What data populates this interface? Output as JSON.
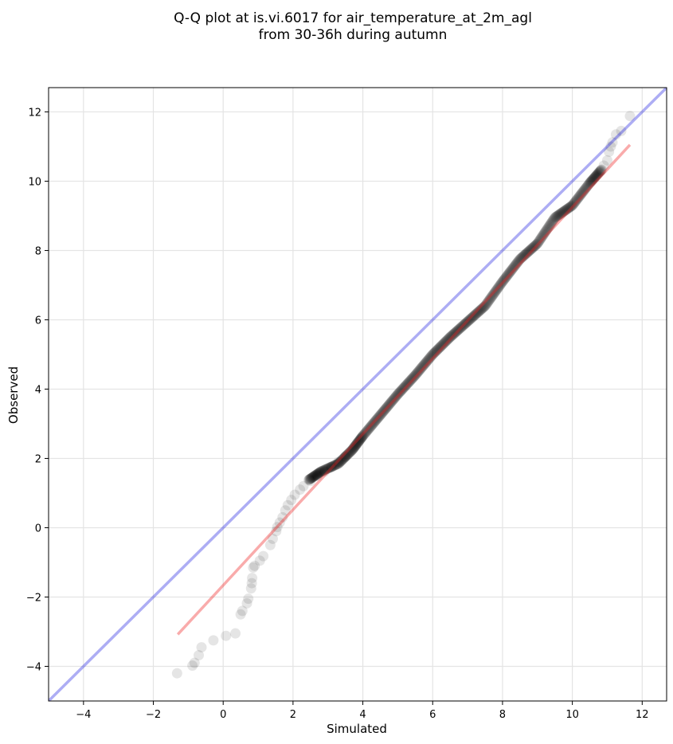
{
  "chart_data": {
    "type": "scatter",
    "title_lines": [
      "Q-Q plot at is.vi.6017 for air_temperature_at_2m_agl",
      "from 30-36h during autumn"
    ],
    "xlabel": "Simulated",
    "ylabel": "Observed",
    "xlim": [
      -5,
      12.7
    ],
    "ylim": [
      -5,
      12.7
    ],
    "xticks": [
      -4,
      -2,
      0,
      2,
      4,
      6,
      8,
      10,
      12
    ],
    "yticks": [
      -4,
      -2,
      0,
      2,
      4,
      6,
      8,
      10,
      12
    ],
    "xtick_labels": [
      "−4",
      "−2",
      "0",
      "2",
      "4",
      "6",
      "8",
      "10",
      "12"
    ],
    "ytick_labels": [
      "−4",
      "−2",
      "0",
      "2",
      "4",
      "6",
      "8",
      "10",
      "12"
    ],
    "grid": true,
    "identity_line": {
      "color": "#0000dd",
      "opacity": 0.32
    },
    "fit_line": {
      "color": "#ee2222",
      "opacity": 0.38,
      "x": [
        -1.3,
        11.65
      ],
      "y": [
        -3.08,
        11.05
      ]
    },
    "points_color": "#000000",
    "tail_points": [
      [
        -1.32,
        -4.2
      ],
      [
        -0.88,
        -3.98
      ],
      [
        -0.82,
        -3.9
      ],
      [
        -0.7,
        -3.68
      ],
      [
        -0.62,
        -3.45
      ],
      [
        -0.28,
        -3.25
      ],
      [
        0.08,
        -3.12
      ],
      [
        0.35,
        -3.05
      ],
      [
        0.5,
        -2.5
      ],
      [
        0.55,
        -2.4
      ],
      [
        0.68,
        -2.18
      ],
      [
        0.72,
        -2.05
      ],
      [
        0.8,
        -1.75
      ],
      [
        0.82,
        -1.6
      ],
      [
        0.83,
        -1.45
      ],
      [
        0.86,
        -1.15
      ],
      [
        0.9,
        -1.1
      ],
      [
        1.05,
        -0.95
      ],
      [
        1.15,
        -0.82
      ],
      [
        1.35,
        -0.5
      ],
      [
        1.42,
        -0.32
      ],
      [
        1.52,
        -0.1
      ],
      [
        1.55,
        0.02
      ],
      [
        1.62,
        0.15
      ],
      [
        1.7,
        0.3
      ],
      [
        1.78,
        0.5
      ],
      [
        1.85,
        0.65
      ],
      [
        1.95,
        0.8
      ],
      [
        2.05,
        0.95
      ],
      [
        2.2,
        1.1
      ],
      [
        2.3,
        1.2
      ],
      [
        2.5,
        1.35
      ],
      [
        2.7,
        1.5
      ],
      [
        2.9,
        1.62
      ],
      [
        3.1,
        1.75
      ],
      [
        3.3,
        1.9
      ],
      [
        3.5,
        2.05
      ]
    ],
    "body_curve": [
      [
        2.45,
        1.38
      ],
      [
        2.8,
        1.62
      ],
      [
        3.3,
        1.85
      ],
      [
        3.7,
        2.25
      ],
      [
        4.0,
        2.65
      ],
      [
        4.5,
        3.25
      ],
      [
        5.0,
        3.85
      ],
      [
        5.5,
        4.4
      ],
      [
        6.0,
        5.0
      ],
      [
        6.5,
        5.5
      ],
      [
        7.0,
        5.95
      ],
      [
        7.5,
        6.4
      ],
      [
        8.0,
        7.1
      ],
      [
        8.5,
        7.75
      ],
      [
        9.0,
        8.2
      ],
      [
        9.5,
        8.95
      ],
      [
        10.0,
        9.3
      ],
      [
        10.5,
        9.95
      ],
      [
        10.85,
        10.35
      ]
    ],
    "upper_tail_points": [
      [
        10.9,
        10.45
      ],
      [
        11.0,
        10.6
      ],
      [
        11.05,
        10.85
      ],
      [
        11.1,
        11.0
      ],
      [
        11.15,
        11.12
      ],
      [
        11.25,
        11.35
      ],
      [
        11.4,
        11.45
      ],
      [
        11.65,
        11.88
      ]
    ]
  }
}
